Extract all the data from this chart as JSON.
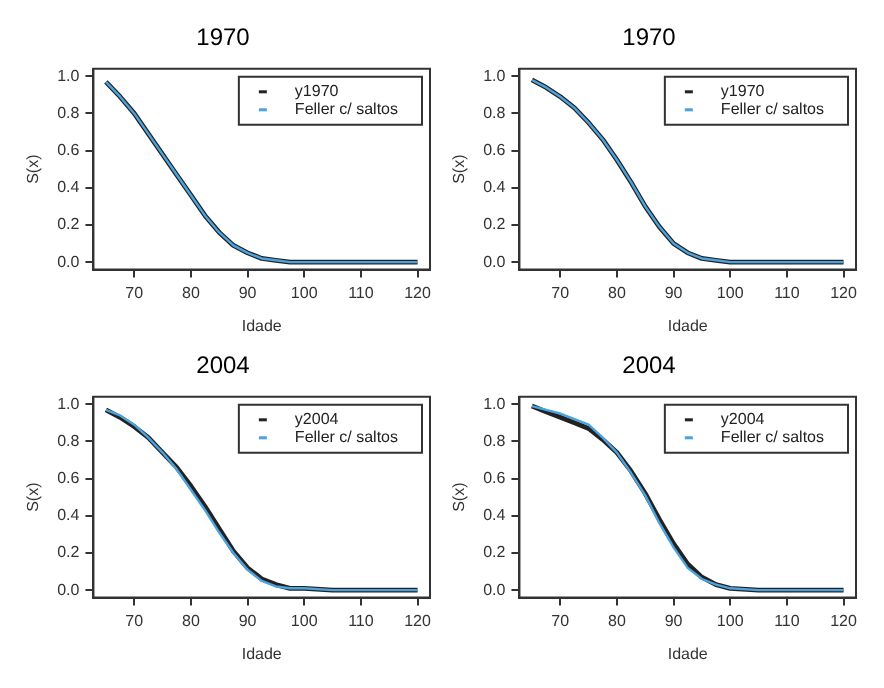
{
  "chart_data": [
    {
      "type": "line",
      "title": "1970",
      "xlabel": "Idade",
      "ylabel": "S(x)",
      "xlim": [
        62.8,
        122.2
      ],
      "ylim": [
        -0.04,
        1.04
      ],
      "xticks": [
        70,
        80,
        90,
        100,
        110,
        120
      ],
      "yticks": [
        {
          "value": 0,
          "label": "0.0"
        },
        {
          "value": 0.2,
          "label": "0.2"
        },
        {
          "value": 0.4,
          "label": "0.4"
        },
        {
          "value": 0.6,
          "label": "0.6"
        },
        {
          "value": 0.8,
          "label": "0.8"
        },
        {
          "value": 1,
          "label": "1.0"
        }
      ],
      "grid": false,
      "legend": "top right",
      "line_style": "solid",
      "marker": "none",
      "x": [
        65,
        67.5,
        70,
        72.5,
        75,
        77.5,
        80,
        82.5,
        85,
        87.5,
        90,
        92.5,
        95,
        97.5,
        100,
        105,
        110,
        115,
        120
      ],
      "series": [
        {
          "name": "y1970",
          "color": "#222222",
          "values": [
            0.97,
            0.89,
            0.8,
            0.69,
            0.58,
            0.47,
            0.36,
            0.25,
            0.16,
            0.09,
            0.05,
            0.02,
            0.01,
            0,
            0,
            0,
            0,
            0,
            0
          ]
        },
        {
          "name": "Feller c/ saltos",
          "color": "#4aa3df",
          "values": [
            0.97,
            0.89,
            0.8,
            0.69,
            0.58,
            0.47,
            0.36,
            0.25,
            0.16,
            0.09,
            0.05,
            0.02,
            0.01,
            0,
            0,
            0,
            0,
            0,
            0
          ]
        }
      ]
    },
    {
      "type": "line",
      "title": "1970",
      "xlabel": "Idade",
      "ylabel": "S(x)",
      "xlim": [
        62.8,
        122.2
      ],
      "ylim": [
        -0.04,
        1.04
      ],
      "xticks": [
        70,
        80,
        90,
        100,
        110,
        120
      ],
      "yticks": [
        {
          "value": 0,
          "label": "0.0"
        },
        {
          "value": 0.2,
          "label": "0.2"
        },
        {
          "value": 0.4,
          "label": "0.4"
        },
        {
          "value": 0.6,
          "label": "0.6"
        },
        {
          "value": 0.8,
          "label": "0.8"
        },
        {
          "value": 1,
          "label": "1.0"
        }
      ],
      "grid": false,
      "legend": "top right",
      "line_style": "solid",
      "marker": "none",
      "x": [
        65,
        67.5,
        70,
        72.5,
        75,
        77.5,
        80,
        82.5,
        85,
        87.5,
        90,
        92.5,
        95,
        97.5,
        100,
        105,
        110,
        115,
        120
      ],
      "series": [
        {
          "name": "y1970",
          "color": "#222222",
          "values": [
            0.98,
            0.94,
            0.89,
            0.83,
            0.75,
            0.66,
            0.55,
            0.43,
            0.3,
            0.19,
            0.1,
            0.05,
            0.02,
            0.01,
            0,
            0,
            0,
            0,
            0
          ]
        },
        {
          "name": "Feller c/ saltos",
          "color": "#4aa3df",
          "values": [
            0.98,
            0.94,
            0.89,
            0.83,
            0.75,
            0.66,
            0.55,
            0.43,
            0.3,
            0.19,
            0.1,
            0.05,
            0.02,
            0.01,
            0,
            0,
            0,
            0,
            0
          ]
        }
      ]
    },
    {
      "type": "line",
      "title": "2004",
      "xlabel": "Idade",
      "ylabel": "S(x)",
      "xlim": [
        62.8,
        122.2
      ],
      "ylim": [
        -0.04,
        1.04
      ],
      "xticks": [
        70,
        80,
        90,
        100,
        110,
        120
      ],
      "yticks": [
        {
          "value": 0,
          "label": "0.0"
        },
        {
          "value": 0.2,
          "label": "0.2"
        },
        {
          "value": 0.4,
          "label": "0.4"
        },
        {
          "value": 0.6,
          "label": "0.6"
        },
        {
          "value": 0.8,
          "label": "0.8"
        },
        {
          "value": 1,
          "label": "1.0"
        }
      ],
      "grid": false,
      "legend": "top right",
      "line_style": "solid",
      "marker": "none",
      "x": [
        65,
        67.5,
        70,
        72.5,
        75,
        77.5,
        80,
        82.5,
        85,
        87.5,
        90,
        92.5,
        95,
        97.5,
        100,
        105,
        110,
        115,
        120
      ],
      "series": [
        {
          "name": "y2004",
          "color": "#222222",
          "values": [
            0.97,
            0.93,
            0.88,
            0.82,
            0.74,
            0.66,
            0.56,
            0.45,
            0.33,
            0.21,
            0.12,
            0.06,
            0.03,
            0.01,
            0.01,
            0,
            0,
            0,
            0
          ]
        },
        {
          "name": "Feller c/ saltos",
          "color": "#4aa3df",
          "values": [
            0.97,
            0.94,
            0.89,
            0.82,
            0.74,
            0.65,
            0.54,
            0.43,
            0.31,
            0.2,
            0.11,
            0.05,
            0.02,
            0.01,
            0.01,
            0,
            0,
            0,
            0
          ]
        }
      ]
    },
    {
      "type": "line",
      "title": "2004",
      "xlabel": "Idade",
      "ylabel": "S(x)",
      "xlim": [
        62.8,
        122.2
      ],
      "ylim": [
        -0.04,
        1.04
      ],
      "xticks": [
        70,
        80,
        90,
        100,
        110,
        120
      ],
      "yticks": [
        {
          "value": 0,
          "label": "0.0"
        },
        {
          "value": 0.2,
          "label": "0.2"
        },
        {
          "value": 0.4,
          "label": "0.4"
        },
        {
          "value": 0.6,
          "label": "0.6"
        },
        {
          "value": 0.8,
          "label": "0.8"
        },
        {
          "value": 1,
          "label": "1.0"
        }
      ],
      "grid": false,
      "legend": "top right",
      "line_style": "solid",
      "marker": "none",
      "x": [
        65,
        67.5,
        70,
        72.5,
        75,
        77.5,
        80,
        82.5,
        85,
        87.5,
        90,
        92.5,
        95,
        97.5,
        100,
        105,
        110,
        115,
        120
      ],
      "series": [
        {
          "name": "y2004",
          "color": "#222222",
          "values": [
            0.99,
            0.96,
            0.93,
            0.9,
            0.87,
            0.81,
            0.74,
            0.64,
            0.52,
            0.38,
            0.25,
            0.14,
            0.07,
            0.03,
            0.01,
            0,
            0,
            0,
            0
          ]
        },
        {
          "name": "Feller c/ saltos",
          "color": "#4aa3df",
          "values": [
            0.99,
            0.97,
            0.95,
            0.92,
            0.89,
            0.82,
            0.74,
            0.63,
            0.51,
            0.36,
            0.23,
            0.12,
            0.06,
            0.03,
            0.01,
            0,
            0,
            0,
            0
          ]
        }
      ]
    }
  ]
}
